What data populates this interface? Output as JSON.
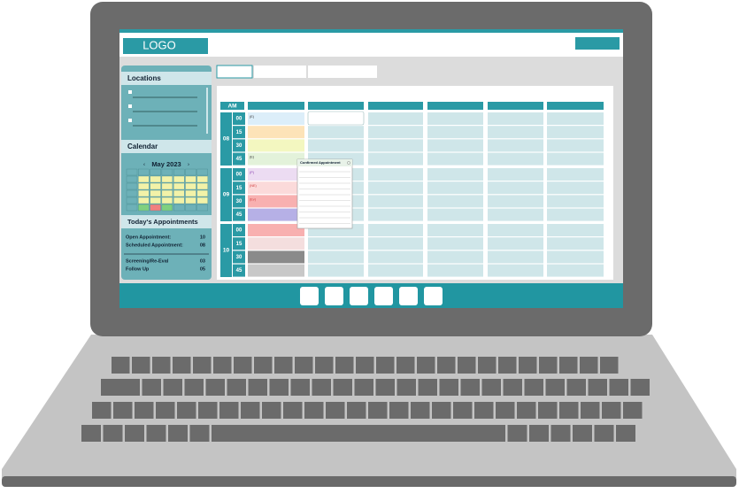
{
  "header": {
    "logo": "LOGO"
  },
  "sidebar": {
    "locations": {
      "title": "Locations"
    },
    "calendar": {
      "title": "Calendar",
      "month": "May 2023"
    },
    "appointments": {
      "title": "Today's Appointments",
      "rows": [
        {
          "label": "Open Appointment:",
          "value": "10"
        },
        {
          "label": "Scheduled Appointment:",
          "value": "08"
        },
        {
          "label": "Screening/Re-Eval",
          "value": "03"
        },
        {
          "label": "Follow Up",
          "value": "05"
        }
      ]
    }
  },
  "schedule": {
    "period": "AM",
    "hours": [
      {
        "hour": "08",
        "slots": [
          {
            "minute": "00",
            "tag": "(E)"
          },
          {
            "minute": "15"
          },
          {
            "minute": "30"
          },
          {
            "minute": "45",
            "tag": "(E)"
          }
        ]
      },
      {
        "hour": "09",
        "slots": [
          {
            "minute": "00",
            "tag": "(P)"
          },
          {
            "minute": "15",
            "tag": "(NE)"
          },
          {
            "minute": "30",
            "tag": "(Ev)"
          },
          {
            "minute": "45"
          }
        ]
      },
      {
        "hour": "10",
        "slots": [
          {
            "minute": "00"
          },
          {
            "minute": "15"
          },
          {
            "minute": "30"
          },
          {
            "minute": "45"
          }
        ]
      }
    ]
  },
  "popup": {
    "title": "Confirmed Appointment"
  }
}
